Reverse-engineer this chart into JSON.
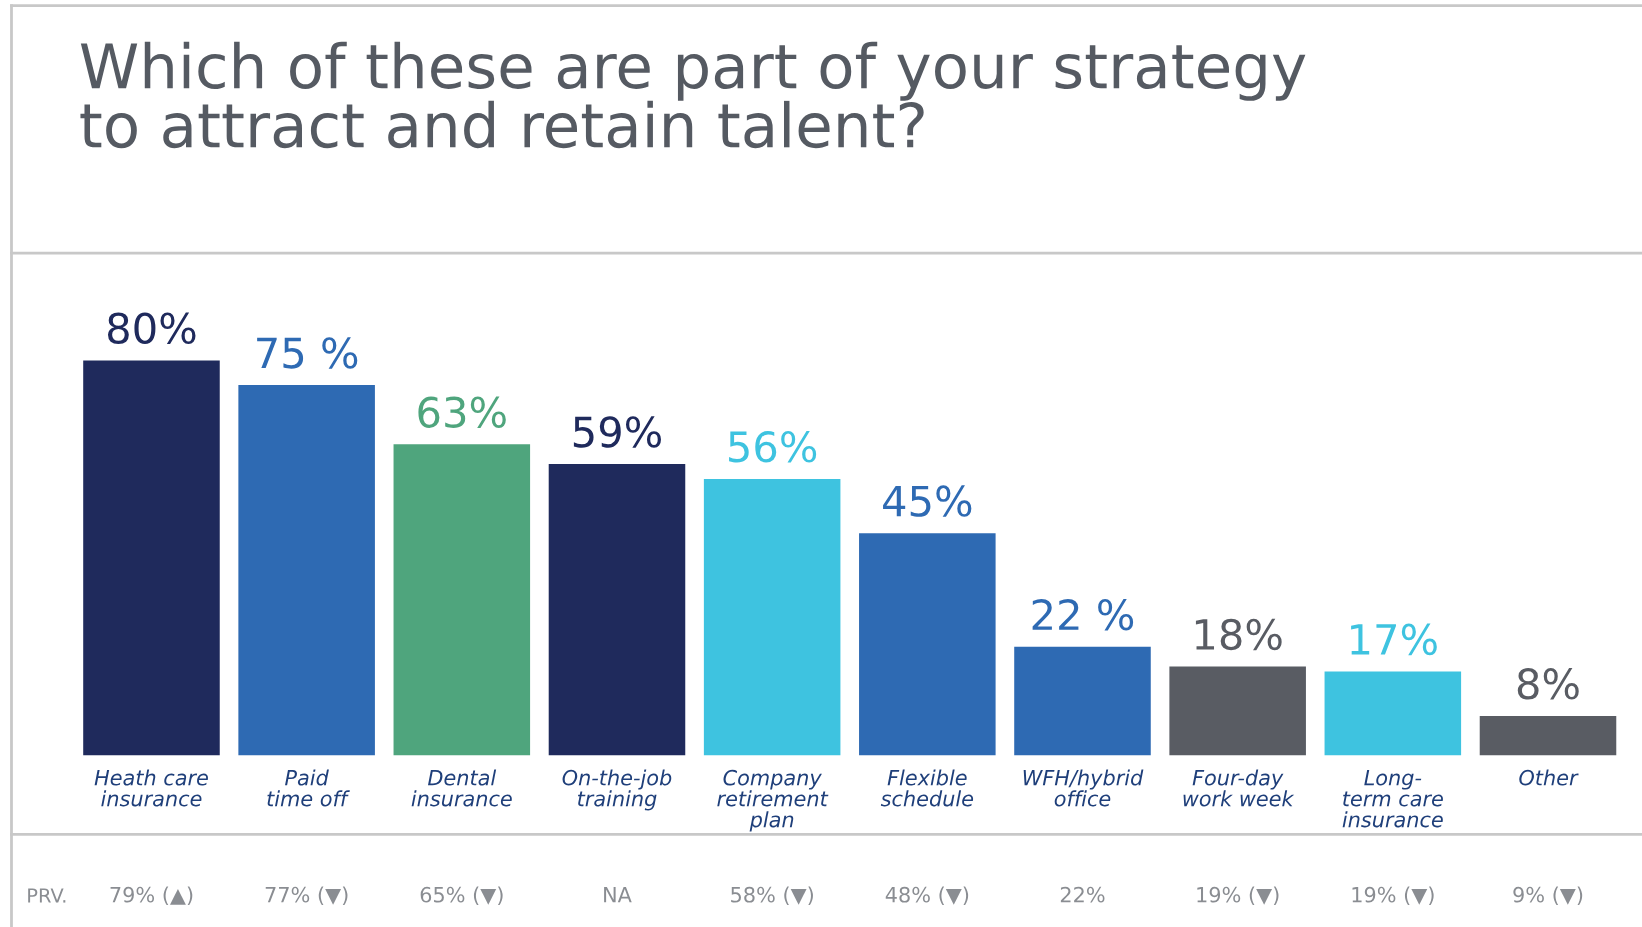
{
  "chart_data": {
    "type": "bar",
    "title": "Which of these are part of your strategy\nto attract and retain talent?",
    "categories": [
      "Heath care\ninsurance",
      "Paid\ntime off",
      "Dental\ninsurance",
      "On-the-job\ntraining",
      "Company\nretirement\nplan",
      "Flexible\nschedule",
      "WFH/hybrid\noffice",
      "Four-day\nwork week",
      "Long-\nterm care\ninsurance",
      "Other"
    ],
    "values": [
      80,
      75,
      63,
      59,
      56,
      45,
      22,
      18,
      17,
      8
    ],
    "value_labels": [
      "80%",
      "75 %",
      "63%",
      "59%",
      "56%",
      "45%",
      "22 %",
      "18%",
      "17%",
      "8%"
    ],
    "colors": [
      "#1f2a5c",
      "#2e6ab3",
      "#4fa57d",
      "#1f2a5c",
      "#3ec3e0",
      "#2e6ab3",
      "#2e6ab3",
      "#595c63",
      "#3ec3e0",
      "#595c63"
    ],
    "annotations": [
      "PRV.",
      "79% (▲)",
      "77% (▼)",
      "65% (▼)",
      "NA",
      "58% (▼)",
      "48% (▼)",
      "22%",
      "19% (▼)",
      "19% (▼)",
      "9% (▼)"
    ],
    "grid": false,
    "legend": false
  }
}
